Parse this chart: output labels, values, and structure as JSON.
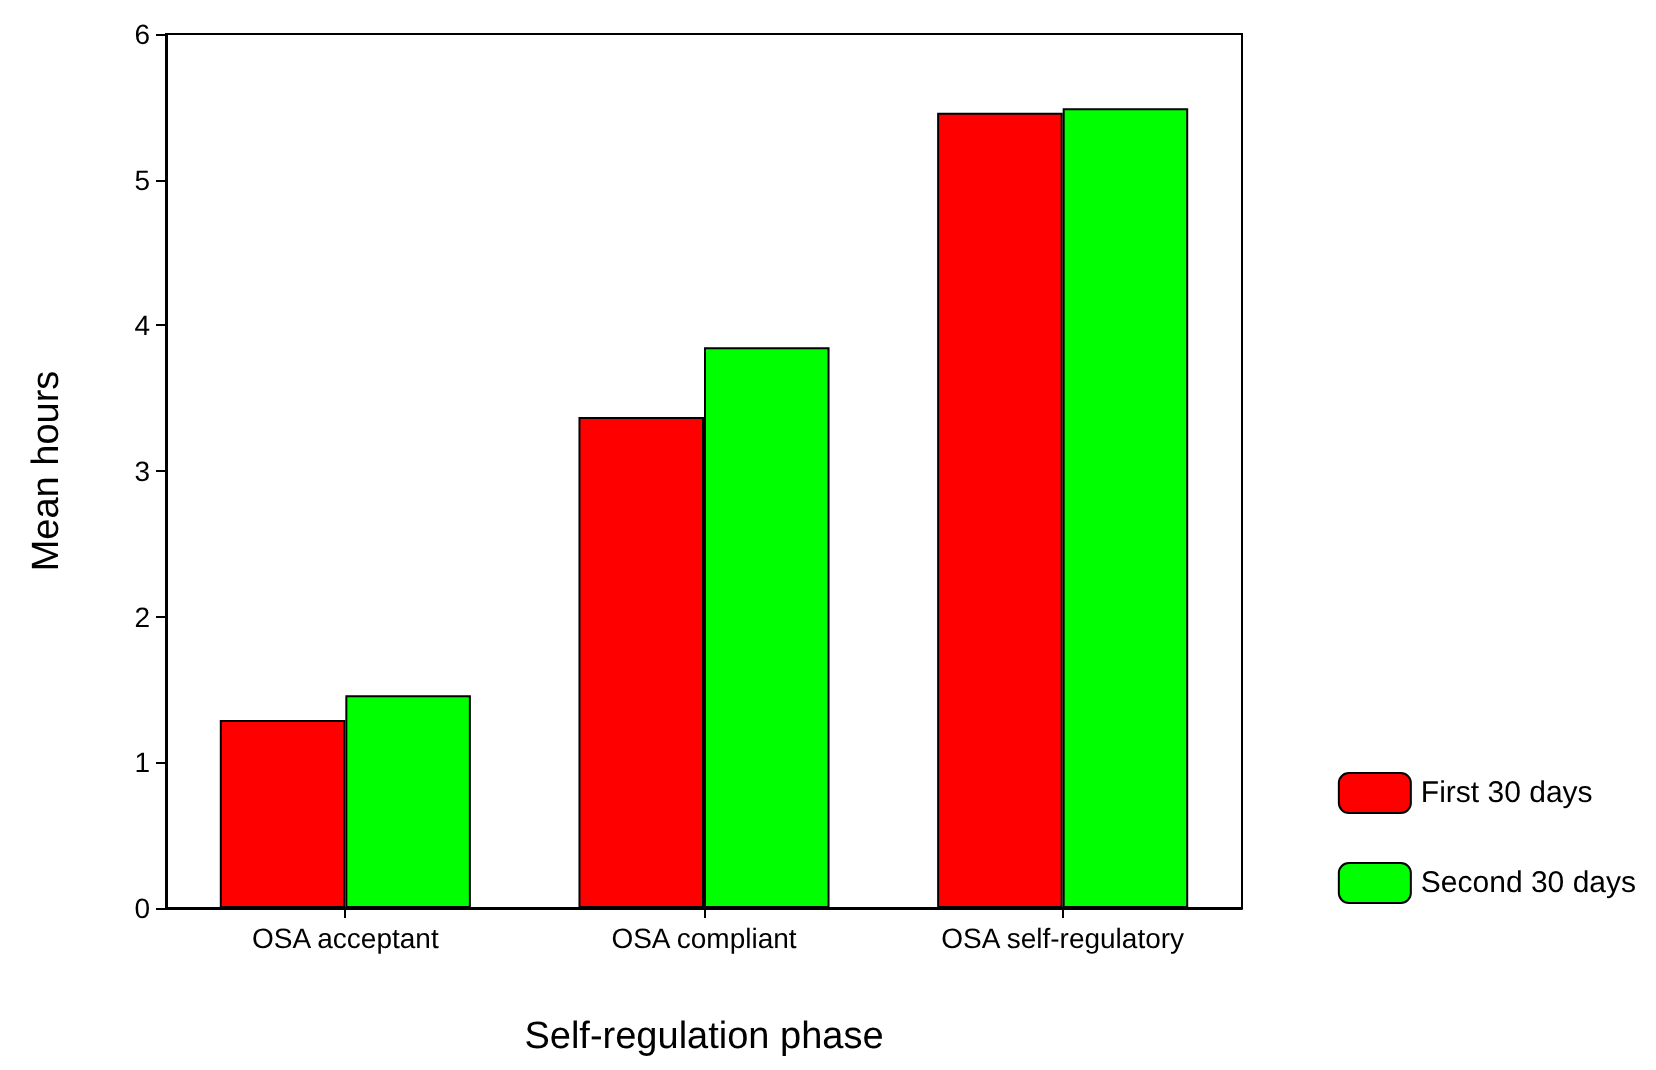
{
  "chart_data": {
    "type": "bar",
    "xlabel": "Self-regulation phase",
    "ylabel": "Mean hours",
    "categories": [
      "OSA acceptant",
      "OSA compliant",
      "OSA self-regulatory"
    ],
    "series": [
      {
        "name": "First 30 days",
        "color": "#ff0000",
        "values": [
          1.29,
          3.37,
          5.46
        ]
      },
      {
        "name": "Second 30 days",
        "color": "#00ff00",
        "values": [
          1.46,
          3.85,
          5.49
        ]
      }
    ],
    "ylim": [
      0,
      6
    ],
    "yticks": [
      0,
      1,
      2,
      3,
      4,
      5,
      6
    ],
    "grid": false,
    "legend": "bottom right"
  }
}
